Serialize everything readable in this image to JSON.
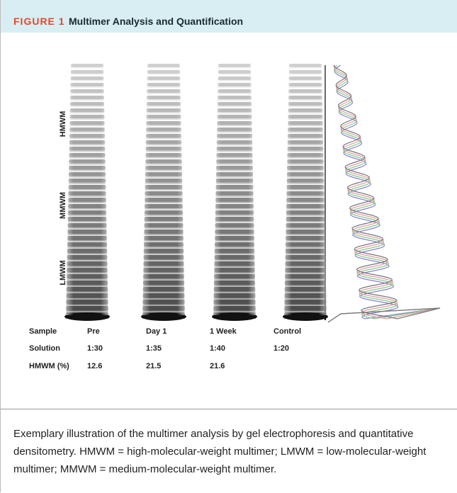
{
  "header": {
    "label": "FIGURE 1",
    "title": "Multimer Analysis and Quantification"
  },
  "figure": {
    "region_labels": [
      "HMWM",
      "MMWM",
      "LMWM"
    ],
    "table": {
      "rows": [
        [
          "Sample",
          "Pre",
          "Day 1",
          "1 Week",
          "Control"
        ],
        [
          "Solution",
          "1:30",
          "1:35",
          "1:40",
          "1:20"
        ],
        [
          "HMWM (%)",
          12.6,
          21.5,
          21.6
        ]
      ]
    }
  },
  "caption": "Exemplary illustration of the multimer analysis by gel electrophoresis and quantitative densitometry. HMWM = high-molecular-weight multimer; LMWM = low-molecular-weight multimer; MMWM = medium-molecular-weight multimer."
}
